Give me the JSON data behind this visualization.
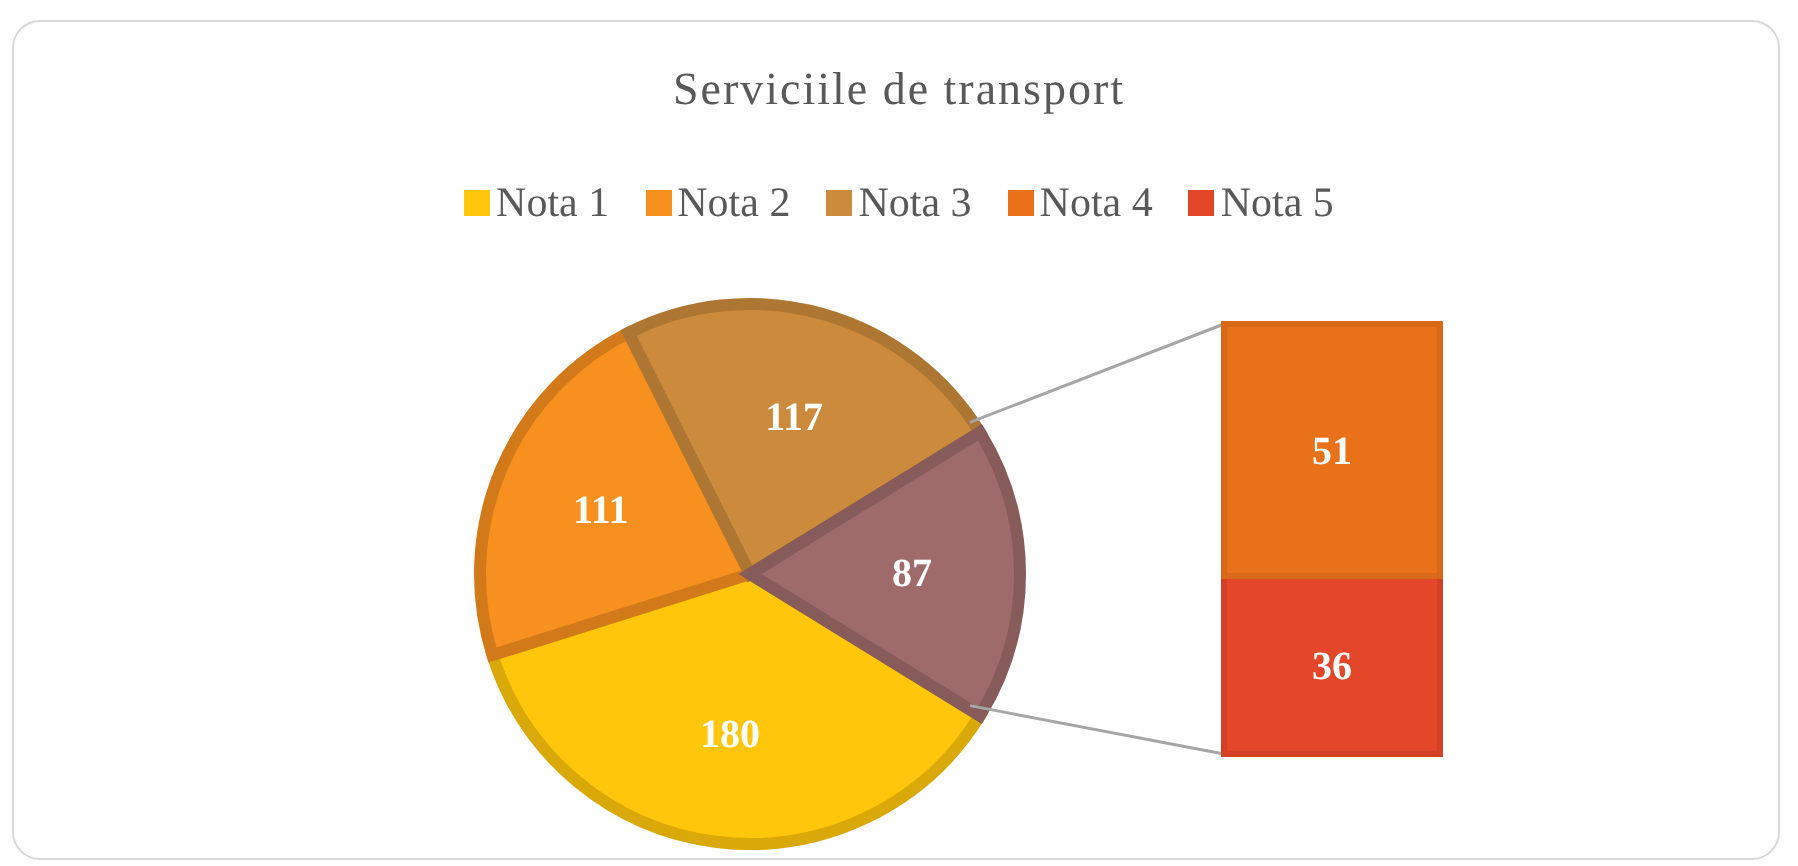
{
  "chart_data": [
    {
      "type": "pie",
      "title": "Serviciile de transport",
      "categories": [
        "Nota 1",
        "Nota 2",
        "Nota 3",
        null
      ],
      "values": [
        180,
        111,
        117,
        87
      ],
      "colors": [
        "#ffc60b",
        "#f7901e",
        "#cc8b3c",
        "#9e6b6a"
      ],
      "data_labels": true,
      "legend": "top"
    },
    {
      "type": "bar",
      "stacked": true,
      "categories": [
        null
      ],
      "series": [
        {
          "name": "Nota 5",
          "color": "#e4462a",
          "values": [
            36
          ]
        },
        {
          "name": "Nota 4",
          "color": "#e8711a",
          "values": [
            51
          ]
        }
      ],
      "data_labels": true,
      "legend": "top"
    }
  ]
}
